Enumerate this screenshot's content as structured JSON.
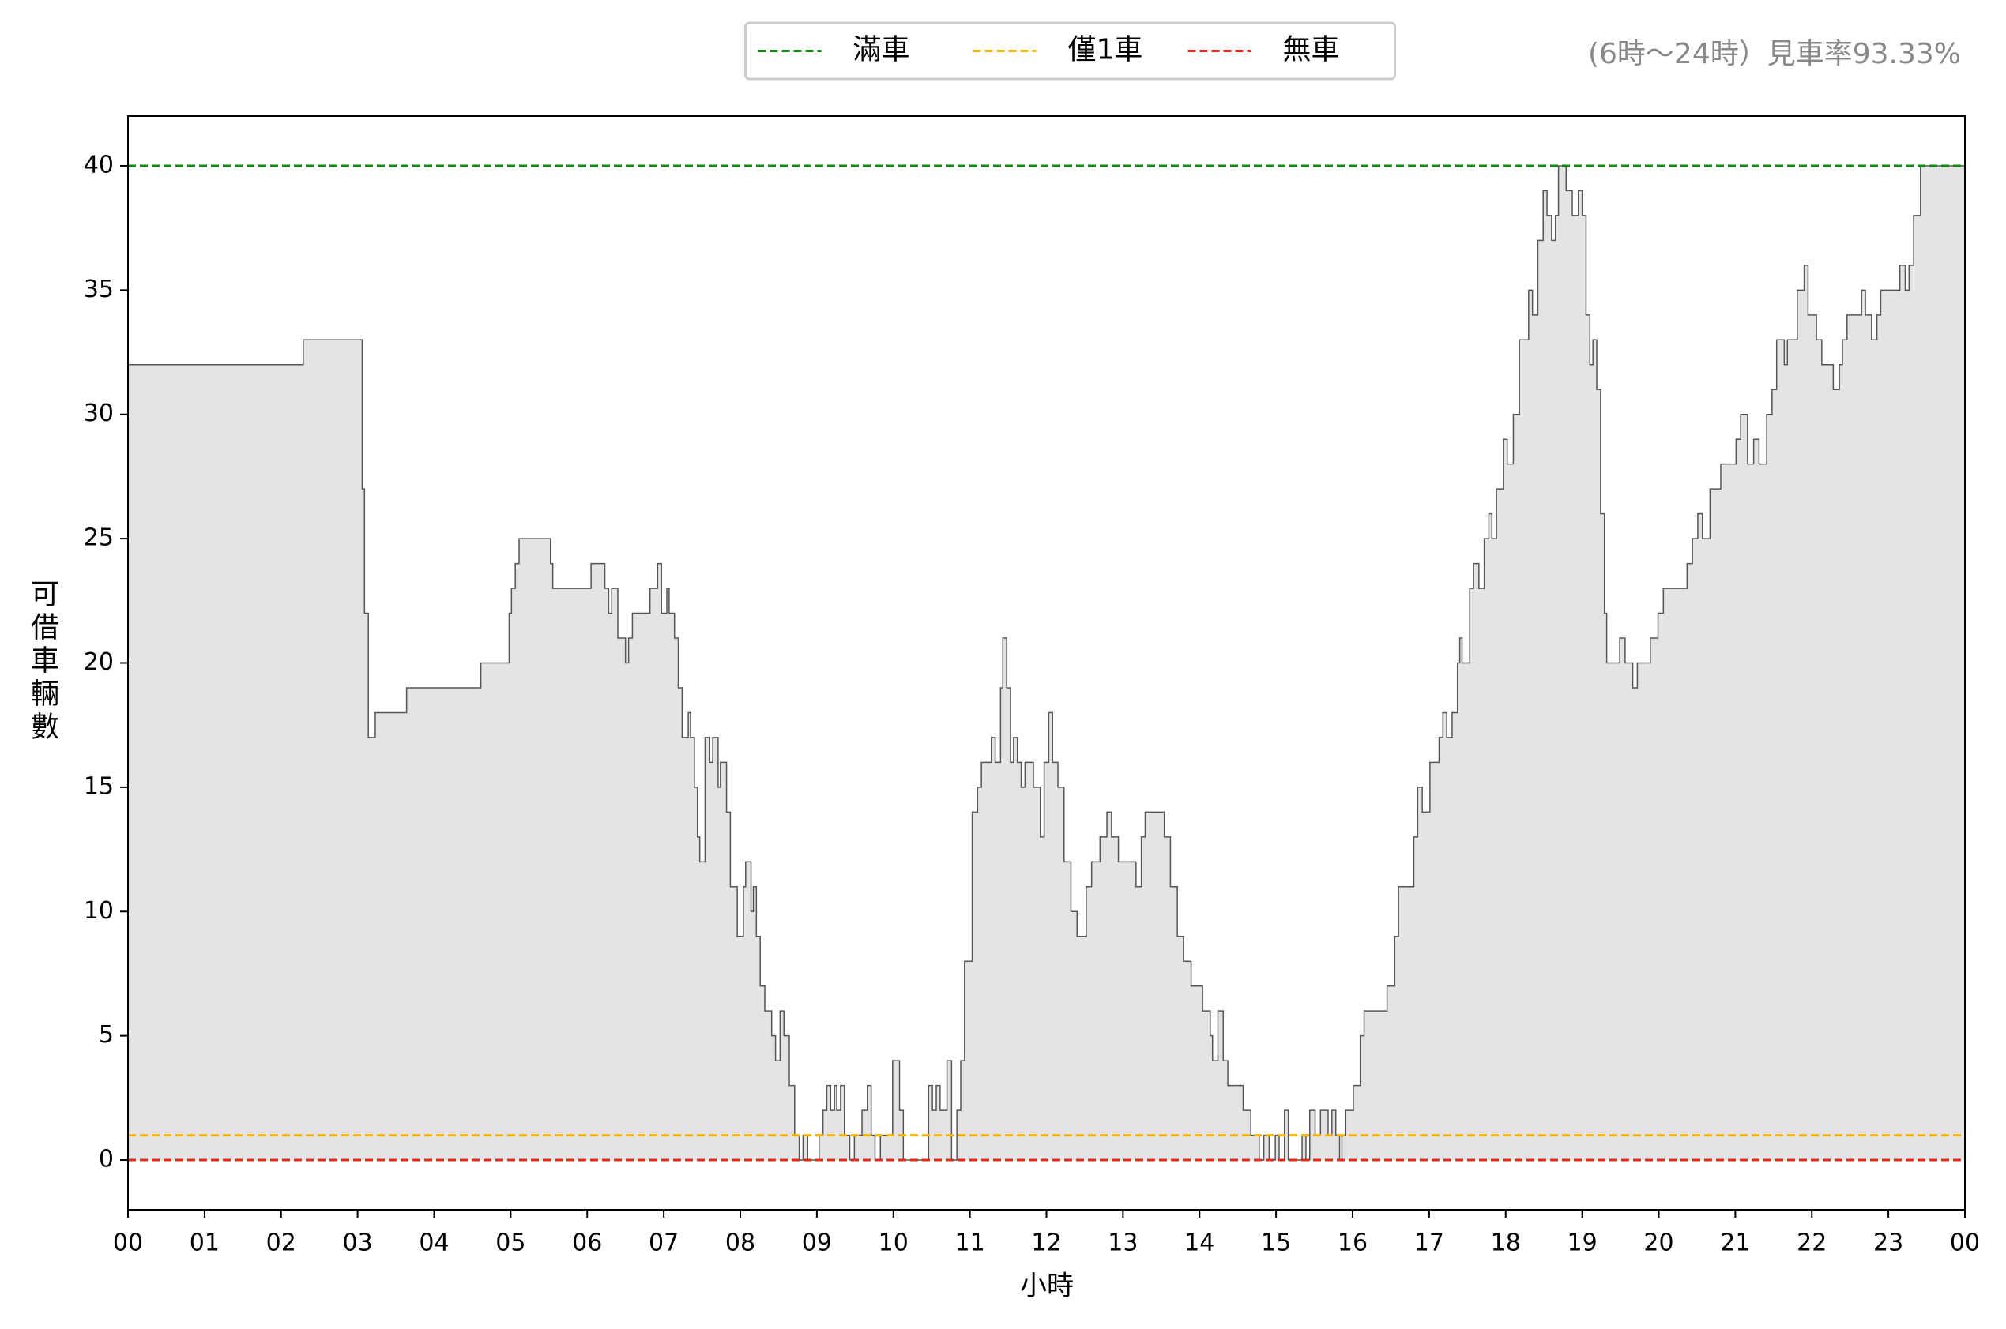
{
  "chart_data": {
    "type": "line",
    "drawstyle": "steps-post",
    "fill": true,
    "ylabel": "可借車輛數",
    "xlabel": "小時",
    "annotation": "(6時～24時）見車率93.33%",
    "legend": "upper center",
    "xlim": [
      0,
      24
    ],
    "ylim": [
      -2,
      42
    ],
    "xticks": [
      {
        "value": 0,
        "label": "00"
      },
      {
        "value": 1,
        "label": "01"
      },
      {
        "value": 2,
        "label": "02"
      },
      {
        "value": 3,
        "label": "03"
      },
      {
        "value": 4,
        "label": "04"
      },
      {
        "value": 5,
        "label": "05"
      },
      {
        "value": 6,
        "label": "06"
      },
      {
        "value": 7,
        "label": "07"
      },
      {
        "value": 8,
        "label": "08"
      },
      {
        "value": 9,
        "label": "09"
      },
      {
        "value": 10,
        "label": "10"
      },
      {
        "value": 11,
        "label": "11"
      },
      {
        "value": 12,
        "label": "12"
      },
      {
        "value": 13,
        "label": "13"
      },
      {
        "value": 14,
        "label": "14"
      },
      {
        "value": 15,
        "label": "15"
      },
      {
        "value": 16,
        "label": "16"
      },
      {
        "value": 17,
        "label": "17"
      },
      {
        "value": 18,
        "label": "18"
      },
      {
        "value": 19,
        "label": "19"
      },
      {
        "value": 20,
        "label": "20"
      },
      {
        "value": 21,
        "label": "21"
      },
      {
        "value": 22,
        "label": "22"
      },
      {
        "value": 23,
        "label": "23"
      },
      {
        "value": 24,
        "label": "00"
      }
    ],
    "yticks": [
      0,
      5,
      10,
      15,
      20,
      25,
      30,
      35,
      40
    ],
    "line_color": "#555555",
    "fill_color": "#e4e4e4",
    "x": [
      0,
      2.29,
      3.06,
      3.09,
      3.14,
      3.19,
      3.23,
      3.64,
      4.61,
      4.98,
      5.01,
      5.06,
      5.11,
      5.21,
      5.52,
      5.55,
      5.62,
      6.05,
      6.23,
      6.28,
      6.32,
      6.4,
      6.5,
      6.54,
      6.59,
      6.82,
      6.92,
      6.97,
      7.04,
      7.07,
      7.14,
      7.19,
      7.24,
      7.32,
      7.35,
      7.4,
      7.44,
      7.47,
      7.54,
      7.6,
      7.64,
      7.71,
      7.74,
      7.82,
      7.87,
      7.96,
      8.04,
      8.07,
      8.14,
      8.17,
      8.21,
      8.26,
      8.32,
      8.41,
      8.46,
      8.52,
      8.57,
      8.64,
      8.71,
      8.77,
      8.82,
      8.88,
      9.03,
      9.08,
      9.13,
      9.18,
      9.23,
      9.26,
      9.31,
      9.36,
      9.43,
      9.49,
      9.59,
      9.66,
      9.71,
      9.76,
      9.83,
      9.99,
      10.08,
      10.13,
      10.46,
      10.51,
      10.56,
      10.61,
      10.7,
      10.76,
      10.83,
      10.88,
      10.93,
      11.03,
      11.1,
      11.15,
      11.28,
      11.33,
      11.4,
      11.43,
      11.48,
      11.53,
      11.57,
      11.62,
      11.67,
      11.72,
      11.83,
      11.92,
      11.97,
      12.03,
      12.08,
      12.15,
      12.23,
      12.32,
      12.4,
      12.52,
      12.59,
      12.7,
      12.79,
      12.85,
      12.94,
      13.17,
      13.24,
      13.29,
      13.54,
      13.62,
      13.71,
      13.79,
      13.89,
      14.04,
      14.14,
      14.17,
      14.24,
      14.31,
      14.37,
      14.57,
      14.67,
      14.78,
      14.84,
      14.91,
      14.99,
      15.04,
      15.11,
      15.16,
      15.34,
      15.39,
      15.44,
      15.51,
      15.58,
      15.68,
      15.73,
      15.78,
      15.83,
      15.86,
      15.91,
      16.01,
      16.1,
      16.15,
      16.45,
      16.55,
      16.6,
      16.8,
      16.85,
      16.91,
      17.01,
      17.13,
      17.18,
      17.23,
      17.3,
      17.37,
      17.4,
      17.43,
      17.53,
      17.58,
      17.65,
      17.72,
      17.78,
      17.82,
      17.88,
      17.97,
      18.02,
      18.1,
      18.18,
      18.3,
      18.35,
      18.42,
      18.49,
      18.54,
      18.6,
      18.65,
      18.69,
      18.79,
      18.87,
      18.95,
      19.0,
      19.05,
      19.1,
      19.14,
      19.19,
      19.24,
      19.29,
      19.32,
      19.49,
      19.56,
      19.66,
      19.72,
      19.89,
      19.99,
      20.06,
      20.37,
      20.44,
      20.51,
      20.57,
      20.67,
      20.81,
      21.01,
      21.07,
      21.16,
      21.24,
      21.31,
      21.41,
      21.48,
      21.54,
      21.64,
      21.68,
      21.81,
      21.9,
      21.95,
      22.06,
      22.13,
      22.28,
      22.36,
      22.4,
      22.46,
      22.65,
      22.7,
      22.78,
      22.85,
      22.9,
      23.15,
      23.22,
      23.27,
      23.33,
      23.42,
      24
    ],
    "values": [
      32,
      33,
      27,
      22,
      17,
      17,
      18,
      19,
      20,
      22,
      23,
      24,
      25,
      25,
      24,
      23,
      23,
      24,
      23,
      22,
      23,
      21,
      20,
      21,
      22,
      23,
      24,
      22,
      23,
      22,
      21,
      19,
      17,
      18,
      17,
      15,
      13,
      12,
      17,
      16,
      17,
      15,
      16,
      14,
      11,
      9,
      11,
      12,
      10,
      11,
      9,
      7,
      6,
      5,
      4,
      6,
      5,
      3,
      1,
      0,
      1,
      0,
      1,
      2,
      3,
      2,
      3,
      2,
      3,
      1,
      0,
      1,
      2,
      3,
      1,
      0,
      1,
      4,
      2,
      0,
      3,
      2,
      3,
      2,
      4,
      0,
      2,
      4,
      8,
      14,
      15,
      16,
      17,
      16,
      19,
      21,
      19,
      16,
      17,
      16,
      15,
      16,
      15,
      13,
      16,
      18,
      16,
      15,
      12,
      10,
      9,
      11,
      12,
      13,
      14,
      13,
      12,
      11,
      13,
      14,
      13,
      11,
      9,
      8,
      7,
      6,
      5,
      4,
      6,
      4,
      3,
      2,
      1,
      0,
      1,
      0,
      1,
      0,
      2,
      0,
      1,
      0,
      2,
      1,
      2,
      1,
      2,
      1,
      0,
      1,
      2,
      3,
      5,
      6,
      7,
      9,
      11,
      13,
      15,
      14,
      16,
      17,
      18,
      17,
      18,
      20,
      21,
      20,
      23,
      24,
      23,
      25,
      26,
      25,
      27,
      29,
      28,
      30,
      33,
      35,
      34,
      37,
      39,
      38,
      37,
      38,
      40,
      39,
      38,
      39,
      38,
      34,
      32,
      33,
      31,
      26,
      22,
      20,
      21,
      20,
      19,
      20,
      21,
      22,
      23,
      24,
      25,
      26,
      25,
      27,
      28,
      29,
      30,
      28,
      29,
      28,
      30,
      31,
      33,
      32,
      33,
      35,
      36,
      34,
      33,
      32,
      31,
      32,
      33,
      34,
      35,
      34,
      33,
      34,
      35,
      36,
      35,
      36,
      38,
      40,
      40
    ],
    "reference_lines": [
      {
        "name": "滿車",
        "value": 40,
        "color": "#108a10"
      },
      {
        "name": "僅1車",
        "value": 1,
        "color": "#f2b70f"
      },
      {
        "name": "無車",
        "value": 0,
        "color": "#e52a1c"
      }
    ]
  }
}
